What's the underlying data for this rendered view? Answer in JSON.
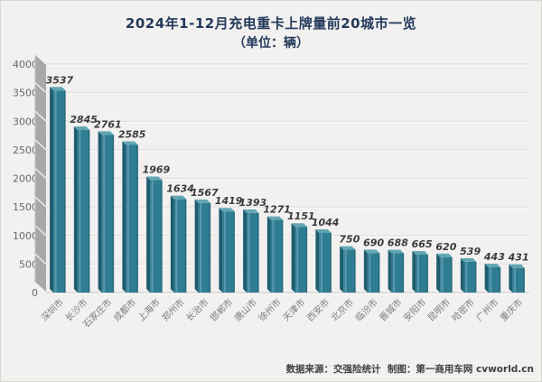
{
  "title": "2024年1-12月充电重卡上牌量前20城市一览",
  "subtitle": "（单位：辆）",
  "footer": "数据来源：交强险统计  制图：第一商用车网 cvworld.cn",
  "colors": {
    "background": "#f2f1ef",
    "title_text": "#23395c",
    "bar_front": "#2e7d93",
    "bar_left_shade": "#1e5c70",
    "bar_top_bevel": "#62a6b4",
    "wall_gray": "#a8a8a8",
    "gridline": "#dbd9d6",
    "axis_label_gray": "#686868",
    "category_label_gray": "#7c7c7c",
    "value_label_dark": "#3a3a3a"
  },
  "chart_data": {
    "type": "bar",
    "title": "2024年1-12月充电重卡上牌量前20城市一览",
    "subtitle": "（单位：辆）",
    "style": "3d-column",
    "categories": [
      "深圳市",
      "长沙市",
      "石家庄市",
      "成都市",
      "上海市",
      "郑州市",
      "长治市",
      "邯郸市",
      "唐山市",
      "徐州市",
      "天津市",
      "西安市",
      "北京市",
      "临汾市",
      "晋城市",
      "安阳市",
      "昆明市",
      "哈密市",
      "广州市",
      "重庆市"
    ],
    "values": [
      3537,
      2845,
      2761,
      2585,
      1969,
      1634,
      1567,
      1419,
      1393,
      1271,
      1151,
      1044,
      750,
      690,
      688,
      665,
      620,
      539,
      443,
      431
    ],
    "xlabel": "",
    "ylabel": "",
    "ylim": [
      0,
      4000
    ],
    "ytick_step": 500,
    "grid": true,
    "legend": false,
    "data_labels": true
  }
}
